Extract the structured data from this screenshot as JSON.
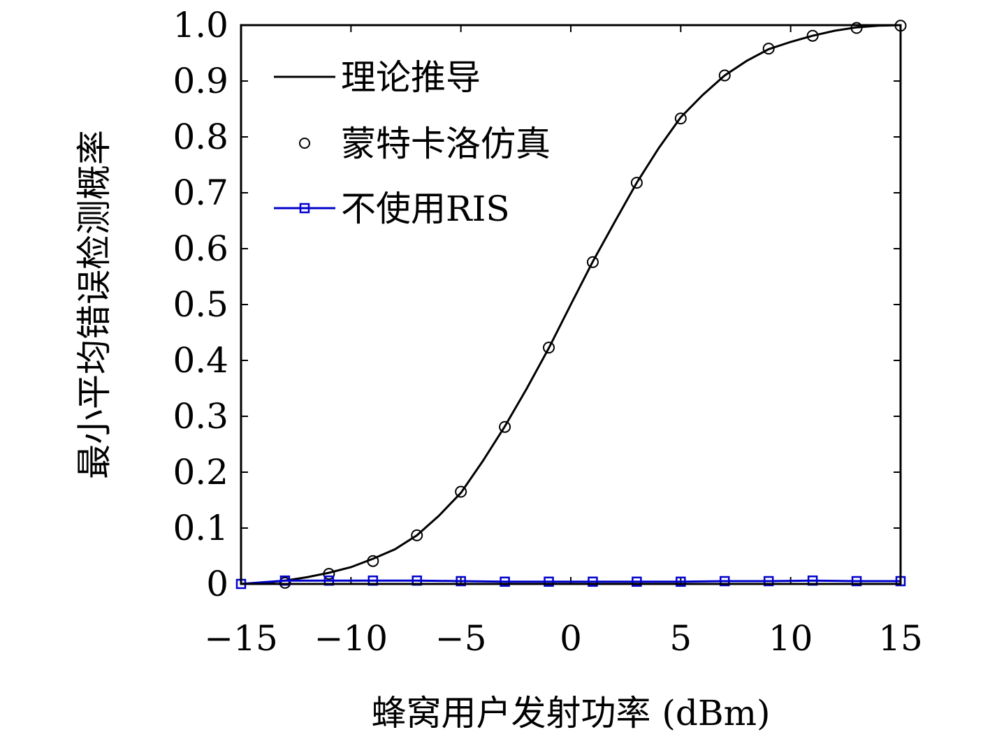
{
  "chart_data": {
    "type": "line",
    "xlabel": "蜂窝用户发射功率 (dBm)",
    "ylabel": "最小平均错误检测概率",
    "xlim": [
      -15,
      15
    ],
    "ylim": [
      0,
      1.0
    ],
    "x_ticks": [
      -15,
      -10,
      -5,
      0,
      5,
      10,
      15
    ],
    "x_tick_labels": [
      "−15",
      "−10",
      "−5",
      "0",
      "5",
      "10",
      "15"
    ],
    "y_ticks": [
      0,
      0.1,
      0.2,
      0.3,
      0.4,
      0.5,
      0.6,
      0.7,
      0.8,
      0.9,
      1.0
    ],
    "y_tick_labels": [
      "0",
      "0.1",
      "0.2",
      "0.3",
      "0.4",
      "0.5",
      "0.6",
      "0.7",
      "0.8",
      "0.9",
      "1.0"
    ],
    "grid": false,
    "legend_position": "top-left",
    "series": [
      {
        "name": "理论推导",
        "style": "line",
        "color": "#000000",
        "x": [
          -15,
          -14,
          -13,
          -12,
          -11,
          -10,
          -9,
          -8,
          -7,
          -6,
          -5,
          -4,
          -3,
          -2,
          -1,
          0,
          1,
          2,
          3,
          4,
          5,
          6,
          7,
          8,
          9,
          10,
          11,
          12,
          13,
          14,
          15
        ],
        "y": [
          0.0,
          0.002,
          0.006,
          0.012,
          0.02,
          0.03,
          0.045,
          0.062,
          0.087,
          0.122,
          0.163,
          0.22,
          0.282,
          0.35,
          0.422,
          0.5,
          0.577,
          0.648,
          0.718,
          0.78,
          0.835,
          0.875,
          0.91,
          0.936,
          0.957,
          0.97,
          0.981,
          0.99,
          0.996,
          0.999,
          1.0
        ]
      },
      {
        "name": "蒙特卡洛仿真",
        "style": "circle-markers",
        "color": "#000000",
        "x": [
          -13,
          -11,
          -9,
          -7,
          -5,
          -3,
          -1,
          1,
          3,
          5,
          7,
          9,
          11,
          13,
          15
        ],
        "y": [
          0.002,
          0.018,
          0.041,
          0.087,
          0.165,
          0.281,
          0.423,
          0.576,
          0.718,
          0.833,
          0.91,
          0.958,
          0.981,
          0.995,
          0.999
        ]
      },
      {
        "name": "不使用RIS",
        "style": "line-square-markers",
        "color": "#0000cc",
        "x": [
          -15,
          -13,
          -11,
          -9,
          -7,
          -5,
          -3,
          -1,
          1,
          3,
          5,
          7,
          9,
          11,
          13,
          15
        ],
        "y": [
          0.0,
          0.006,
          0.006,
          0.006,
          0.006,
          0.005,
          0.004,
          0.004,
          0.004,
          0.004,
          0.004,
          0.005,
          0.005,
          0.006,
          0.005,
          0.005
        ]
      }
    ]
  }
}
